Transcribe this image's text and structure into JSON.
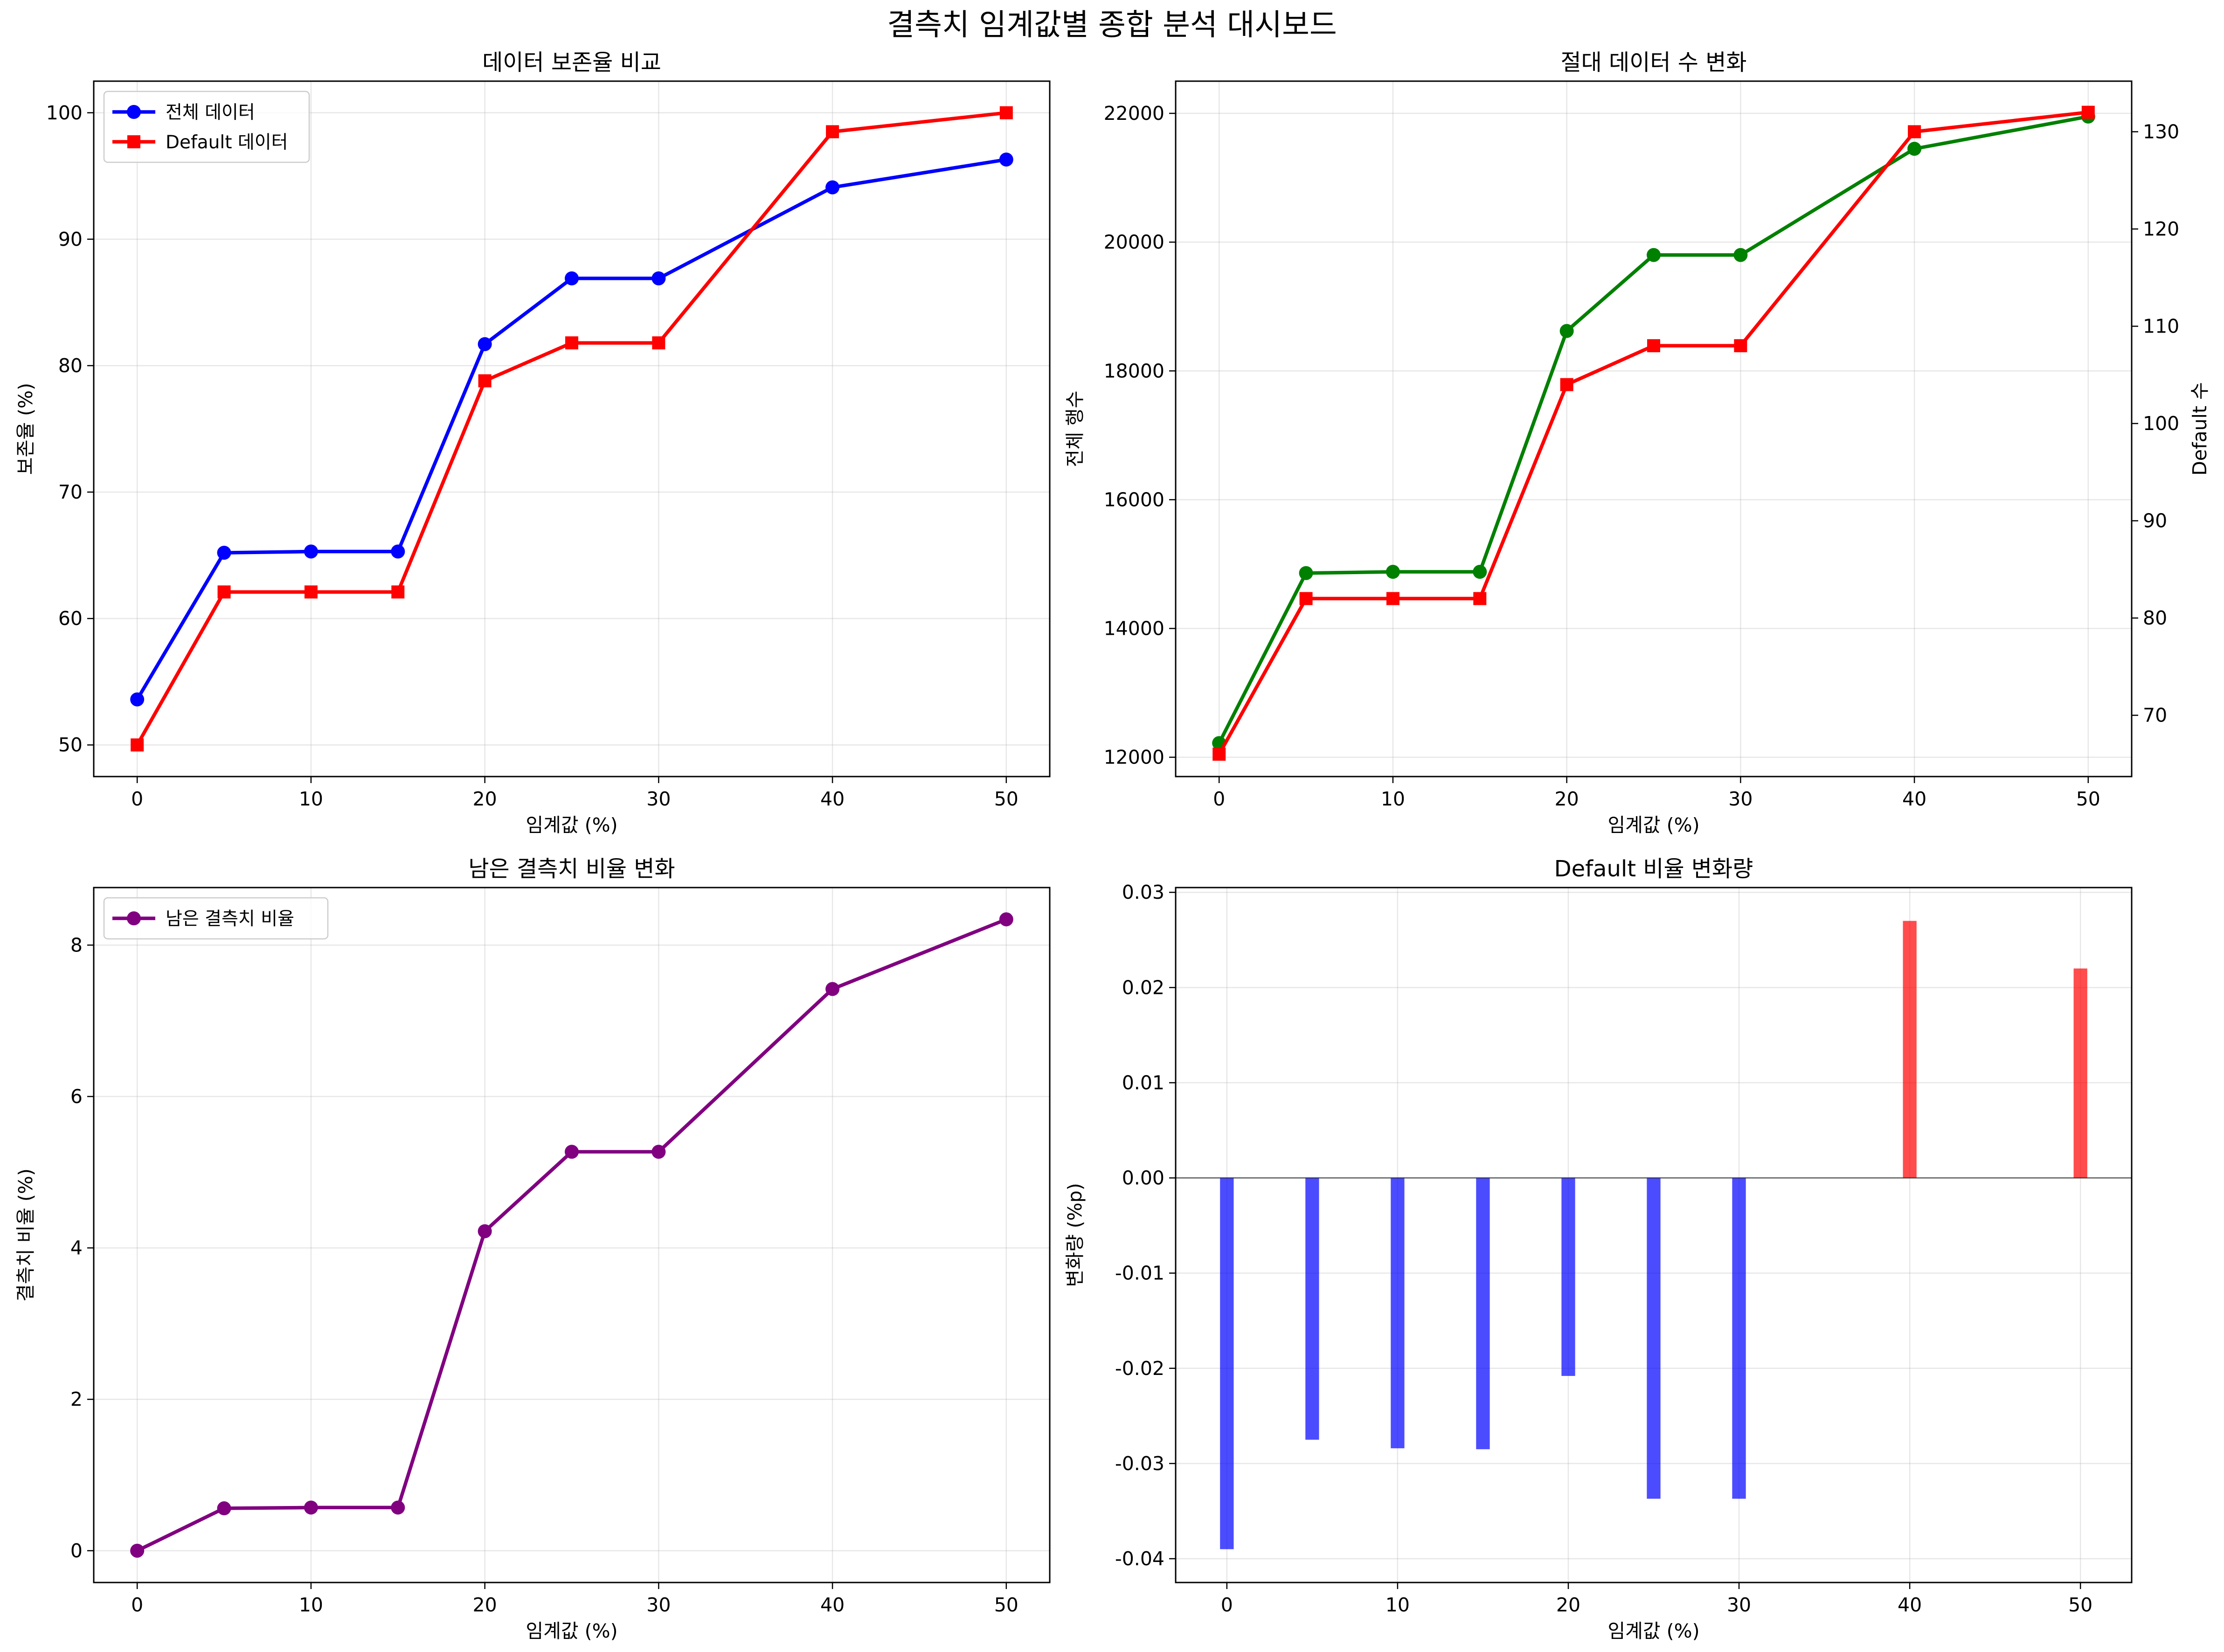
{
  "figure": {
    "suptitle": "결측치 임계값별 종합 분석 대시보드"
  },
  "chart_data": [
    {
      "id": "retention",
      "type": "line",
      "title": "데이터 보존율 비교",
      "xlabel": "임계값 (%)",
      "ylabel": "보존율 (%)",
      "x": [
        0,
        5,
        10,
        15,
        20,
        25,
        30,
        40,
        50
      ],
      "xlim": [
        -2.5,
        52.5
      ],
      "ylim": [
        47.5,
        102.5
      ],
      "xticks": [
        0,
        10,
        20,
        30,
        40,
        50
      ],
      "yticks": [
        50,
        60,
        70,
        80,
        90,
        100
      ],
      "grid": true,
      "legend": "top-left",
      "series": [
        {
          "name": "전체 데이터",
          "color": "#0000ff",
          "marker": "circle",
          "values": [
            53.6,
            65.2,
            65.3,
            65.3,
            81.7,
            86.9,
            86.9,
            94.1,
            96.3
          ]
        },
        {
          "name": "Default 데이터",
          "color": "#ff0000",
          "marker": "square",
          "values": [
            50.0,
            62.1,
            62.1,
            62.1,
            78.8,
            81.8,
            81.8,
            98.5,
            100.0
          ]
        }
      ]
    },
    {
      "id": "counts",
      "type": "line",
      "title": "절대 데이터 수 변화",
      "xlabel": "임계값 (%)",
      "ylabel": "전체 행수",
      "ylabel_right": "Default 수",
      "ylabel_color": "#008000",
      "ylabel_right_color": "#ff0000",
      "x": [
        0,
        5,
        10,
        15,
        20,
        25,
        30,
        40,
        50
      ],
      "xlim": [
        -2.5,
        52.5
      ],
      "ylim": [
        11700,
        22500
      ],
      "ylim_right": [
        63.7,
        135.2
      ],
      "xticks": [
        0,
        10,
        20,
        30,
        40,
        50
      ],
      "yticks": [
        12000,
        14000,
        16000,
        18000,
        20000,
        22000
      ],
      "yticks_right": [
        70,
        80,
        90,
        100,
        110,
        120,
        130
      ],
      "grid": true,
      "series": [
        {
          "name": "전체 행수",
          "axis": "left",
          "color": "#008000",
          "marker": "circle",
          "values": [
            12220,
            14860,
            14880,
            14880,
            18620,
            19800,
            19800,
            21450,
            21950
          ]
        },
        {
          "name": "Default 수",
          "axis": "right",
          "color": "#ff0000",
          "marker": "square",
          "values": [
            66,
            82,
            82,
            82,
            104,
            108,
            108,
            130,
            132
          ]
        }
      ]
    },
    {
      "id": "missing",
      "type": "line",
      "title": "남은 결측치 비율 변화",
      "xlabel": "임계값 (%)",
      "ylabel": "결측치 비율 (%)",
      "x": [
        0,
        5,
        10,
        15,
        20,
        25,
        30,
        40,
        50
      ],
      "xlim": [
        -2.5,
        52.5
      ],
      "ylim": [
        -0.42,
        8.76
      ],
      "xticks": [
        0,
        10,
        20,
        30,
        40,
        50
      ],
      "yticks": [
        0,
        2,
        4,
        6,
        8
      ],
      "grid": true,
      "legend": "top-left",
      "series": [
        {
          "name": "남은 결측치 비율",
          "color": "#800080",
          "marker": "circle",
          "values": [
            0.0,
            0.56,
            0.57,
            0.57,
            4.22,
            5.27,
            5.27,
            7.42,
            8.34
          ]
        }
      ]
    },
    {
      "id": "default_change",
      "type": "bar",
      "title": "Default 비율 변화량",
      "xlabel": "임계값 (%)",
      "ylabel": "변화량 (%p)",
      "x": [
        0,
        5,
        10,
        15,
        20,
        25,
        30,
        40,
        50
      ],
      "values": [
        -0.039,
        -0.0275,
        -0.0284,
        -0.0285,
        -0.0208,
        -0.0337,
        -0.0337,
        0.027,
        0.022
      ],
      "xlim": [
        -3,
        53
      ],
      "ylim": [
        -0.0425,
        0.0305
      ],
      "xticks": [
        0,
        10,
        20,
        30,
        40,
        50
      ],
      "yticks": [
        -0.04,
        -0.03,
        -0.02,
        -0.01,
        0.0,
        0.01,
        0.02,
        0.03
      ],
      "ytick_labels": [
        "-0.04",
        "-0.03",
        "-0.02",
        "-0.01",
        "0.00",
        "0.01",
        "0.02",
        "0.03"
      ],
      "positive_color": "#ff0000",
      "negative_color": "#0000ff",
      "baseline": 0,
      "grid": true
    }
  ]
}
